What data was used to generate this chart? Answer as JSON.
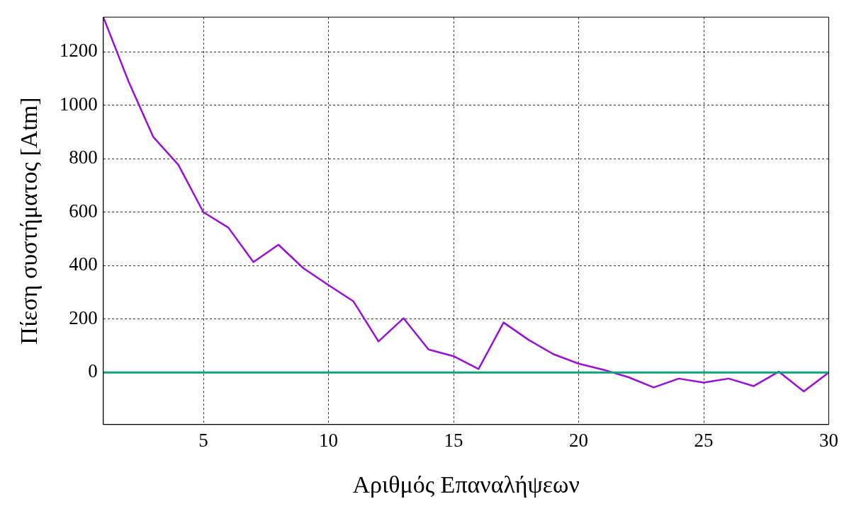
{
  "chart_data": {
    "type": "line",
    "xlabel": "Αριθμός Επαναλήψεων",
    "ylabel": "Πίεση συστήματος [Atm]",
    "x": [
      1,
      2,
      3,
      4,
      5,
      6,
      7,
      8,
      9,
      10,
      11,
      12,
      13,
      14,
      15,
      16,
      17,
      18,
      19,
      20,
      21,
      22,
      23,
      24,
      25,
      26,
      27,
      28,
      29,
      30
    ],
    "series": [
      {
        "color": "#9a0fd6",
        "values": [
          1330,
          1091,
          881,
          777,
          600,
          542,
          413,
          478,
          390,
          327,
          266,
          116,
          203,
          86,
          61,
          13,
          187,
          122,
          68,
          33,
          10,
          -18,
          -56,
          -23,
          -38,
          -23,
          -51,
          3,
          -71,
          0
        ]
      }
    ],
    "ref_lines": [
      {
        "axis": "y",
        "value": 0,
        "color": "#0fa37a"
      }
    ],
    "xlim": [
      1,
      30
    ],
    "xticks": [
      5,
      10,
      15,
      20,
      25,
      30
    ],
    "ylim": [
      -195,
      1330
    ],
    "yticks": [
      0,
      200,
      400,
      600,
      800,
      1000,
      1200
    ],
    "grid": true,
    "legend": false,
    "marker": "none",
    "line_style": "solid"
  }
}
